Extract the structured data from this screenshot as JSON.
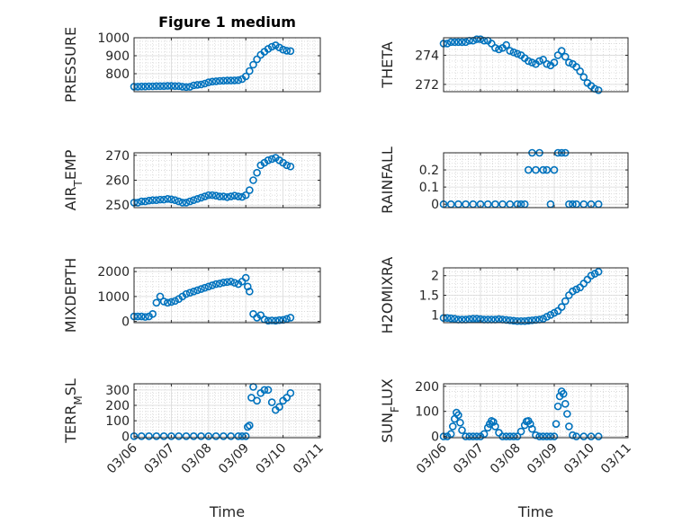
{
  "figure_title": "Figure 1 medium",
  "x_axis_label": "Time",
  "marker_color": "#0072BD",
  "date_ticks": [
    "03/06",
    "03/07",
    "03/08",
    "03/09",
    "03/10",
    "03/11"
  ],
  "chart_data": [
    {
      "type": "scatter",
      "title": "Figure 1 medium",
      "ylabel": "PRESSURE",
      "xlabel": "",
      "ylim": [
        700,
        1000
      ],
      "yticks": [
        800,
        900,
        1000
      ],
      "ytick_labels": [
        "800",
        "900",
        "1000"
      ],
      "xlim": [
        0,
        5
      ],
      "grid": true,
      "x": [
        0.0,
        0.1,
        0.2,
        0.3,
        0.4,
        0.5,
        0.6,
        0.7,
        0.8,
        0.9,
        1.0,
        1.1,
        1.2,
        1.3,
        1.4,
        1.5,
        1.6,
        1.7,
        1.8,
        1.9,
        2.0,
        2.1,
        2.2,
        2.3,
        2.4,
        2.5,
        2.6,
        2.7,
        2.8,
        2.9,
        3.0,
        3.1,
        3.2,
        3.3,
        3.4,
        3.5,
        3.6,
        3.7,
        3.8,
        3.9,
        4.0,
        4.1,
        4.2
      ],
      "y": [
        728,
        728,
        729,
        729,
        730,
        730,
        731,
        731,
        731,
        732,
        732,
        731,
        731,
        728,
        726,
        727,
        735,
        738,
        740,
        745,
        752,
        756,
        758,
        760,
        761,
        762,
        762,
        763,
        764,
        770,
        785,
        815,
        850,
        880,
        905,
        922,
        938,
        950,
        958,
        946,
        934,
        928,
        926
      ]
    },
    {
      "type": "scatter",
      "ylabel": "THETA",
      "xlabel": "",
      "ylim": [
        271.5,
        275.2
      ],
      "yticks": [
        272,
        274
      ],
      "ytick_labels": [
        "272",
        "274"
      ],
      "xlim": [
        0,
        5
      ],
      "grid": true,
      "x": [
        0.0,
        0.1,
        0.2,
        0.3,
        0.4,
        0.5,
        0.6,
        0.7,
        0.8,
        0.9,
        1.0,
        1.1,
        1.2,
        1.3,
        1.4,
        1.5,
        1.6,
        1.7,
        1.8,
        1.9,
        2.0,
        2.1,
        2.2,
        2.3,
        2.4,
        2.5,
        2.6,
        2.7,
        2.8,
        2.9,
        3.0,
        3.1,
        3.2,
        3.3,
        3.4,
        3.5,
        3.6,
        3.7,
        3.8,
        3.9,
        4.0,
        4.1,
        4.2
      ],
      "y": [
        274.8,
        274.8,
        274.9,
        274.9,
        274.9,
        274.9,
        274.9,
        275.0,
        275.0,
        275.1,
        275.1,
        275.0,
        275.0,
        274.8,
        274.5,
        274.4,
        274.5,
        274.7,
        274.3,
        274.2,
        274.1,
        274.0,
        273.8,
        273.6,
        273.5,
        273.4,
        273.6,
        273.7,
        273.4,
        273.3,
        273.5,
        274.0,
        274.3,
        273.9,
        273.5,
        273.4,
        273.2,
        272.9,
        272.5,
        272.1,
        271.9,
        271.7,
        271.6
      ]
    },
    {
      "type": "scatter",
      "ylabel": "AIR_TEMP",
      "xlabel": "",
      "ylim": [
        249,
        271
      ],
      "yticks": [
        250,
        260,
        270
      ],
      "ytick_labels": [
        "250",
        "260",
        "270"
      ],
      "xlim": [
        0,
        5
      ],
      "grid": true,
      "x": [
        0.0,
        0.1,
        0.2,
        0.3,
        0.4,
        0.5,
        0.6,
        0.7,
        0.8,
        0.9,
        1.0,
        1.1,
        1.2,
        1.3,
        1.4,
        1.5,
        1.6,
        1.7,
        1.8,
        1.9,
        2.0,
        2.1,
        2.2,
        2.3,
        2.4,
        2.5,
        2.6,
        2.7,
        2.8,
        2.9,
        3.0,
        3.1,
        3.2,
        3.3,
        3.4,
        3.5,
        3.6,
        3.7,
        3.8,
        3.9,
        4.0,
        4.1,
        4.2
      ],
      "y": [
        251,
        251,
        251.5,
        251.5,
        251.8,
        252,
        252,
        252.2,
        252.2,
        252.5,
        252.3,
        252,
        251.5,
        251,
        251,
        251.5,
        252,
        252.5,
        253,
        253.5,
        254,
        254,
        253.8,
        253.5,
        253.5,
        253.2,
        253.5,
        253.8,
        253.5,
        253.3,
        254,
        256,
        260,
        263,
        266,
        267,
        268,
        268.5,
        269,
        268,
        267,
        266,
        265.5
      ]
    },
    {
      "type": "scatter",
      "ylabel": "RAINFALL",
      "xlabel": "",
      "ylim": [
        -0.02,
        0.3
      ],
      "yticks": [
        0,
        0.1,
        0.2
      ],
      "ytick_labels": [
        "0",
        "0.1",
        "0.2"
      ],
      "xlim": [
        0,
        5
      ],
      "grid": true,
      "x": [
        0.0,
        0.2,
        0.4,
        0.6,
        0.8,
        1.0,
        1.2,
        1.4,
        1.6,
        1.8,
        2.0,
        2.1,
        2.2,
        2.3,
        2.4,
        2.5,
        2.6,
        2.7,
        2.8,
        2.9,
        3.0,
        3.1,
        3.2,
        3.3,
        3.4,
        3.5,
        3.6,
        3.8,
        4.0,
        4.2
      ],
      "y": [
        0,
        0,
        0,
        0,
        0,
        0,
        0,
        0,
        0,
        0,
        0,
        0,
        0,
        0.2,
        0.3,
        0.2,
        0.3,
        0.2,
        0.2,
        0,
        0.2,
        0.3,
        0.3,
        0.3,
        0,
        0,
        0,
        0,
        0,
        0
      ]
    },
    {
      "type": "scatter",
      "ylabel": "MIXDEPTH",
      "xlabel": "",
      "ylim": [
        -50,
        2150
      ],
      "yticks": [
        0,
        1000,
        2000
      ],
      "ytick_labels": [
        "0",
        "1000",
        "2000"
      ],
      "xlim": [
        0,
        5
      ],
      "grid": true,
      "x": [
        0.0,
        0.1,
        0.2,
        0.3,
        0.4,
        0.5,
        0.6,
        0.7,
        0.8,
        0.9,
        1.0,
        1.1,
        1.2,
        1.3,
        1.4,
        1.5,
        1.6,
        1.7,
        1.8,
        1.9,
        2.0,
        2.1,
        2.2,
        2.3,
        2.4,
        2.5,
        2.6,
        2.7,
        2.8,
        2.9,
        3.0,
        3.05,
        3.1,
        3.2,
        3.3,
        3.4,
        3.5,
        3.6,
        3.7,
        3.8,
        3.9,
        4.0,
        4.1,
        4.2
      ],
      "y": [
        200,
        200,
        200,
        180,
        200,
        300,
        750,
        1000,
        800,
        750,
        780,
        820,
        900,
        1000,
        1100,
        1150,
        1200,
        1250,
        1300,
        1350,
        1400,
        1450,
        1500,
        1520,
        1560,
        1580,
        1600,
        1550,
        1500,
        1600,
        1750,
        1400,
        1200,
        300,
        150,
        250,
        80,
        30,
        40,
        30,
        50,
        60,
        100,
        150
      ]
    },
    {
      "type": "scatter",
      "ylabel": "H2OMIXRA",
      "xlabel": "",
      "ylim": [
        0.8,
        2.2
      ],
      "yticks": [
        1,
        1.5,
        2
      ],
      "ytick_labels": [
        "1",
        "1.5",
        "2"
      ],
      "xlim": [
        0,
        5
      ],
      "grid": true,
      "x": [
        0.0,
        0.1,
        0.2,
        0.3,
        0.4,
        0.5,
        0.6,
        0.7,
        0.8,
        0.9,
        1.0,
        1.1,
        1.2,
        1.3,
        1.4,
        1.5,
        1.6,
        1.7,
        1.8,
        1.9,
        2.0,
        2.1,
        2.2,
        2.3,
        2.4,
        2.5,
        2.6,
        2.7,
        2.8,
        2.9,
        3.0,
        3.1,
        3.2,
        3.3,
        3.4,
        3.5,
        3.6,
        3.7,
        3.8,
        3.9,
        4.0,
        4.1,
        4.2
      ],
      "y": [
        0.92,
        0.92,
        0.91,
        0.9,
        0.88,
        0.88,
        0.88,
        0.89,
        0.9,
        0.9,
        0.89,
        0.88,
        0.88,
        0.88,
        0.88,
        0.89,
        0.88,
        0.87,
        0.86,
        0.85,
        0.84,
        0.84,
        0.84,
        0.85,
        0.86,
        0.87,
        0.88,
        0.9,
        0.95,
        1.0,
        1.05,
        1.1,
        1.2,
        1.35,
        1.5,
        1.6,
        1.65,
        1.7,
        1.8,
        1.9,
        2.0,
        2.05,
        2.1
      ]
    },
    {
      "type": "scatter",
      "ylabel": "TERR_MSL",
      "xlabel": "Time",
      "ylim": [
        -10,
        340
      ],
      "yticks": [
        0,
        100,
        200,
        300
      ],
      "ytick_labels": [
        "0",
        "100",
        "200",
        "300"
      ],
      "xlim": [
        0,
        5
      ],
      "grid": true,
      "x": [
        0.0,
        0.2,
        0.4,
        0.6,
        0.8,
        1.0,
        1.2,
        1.4,
        1.6,
        1.8,
        2.0,
        2.2,
        2.4,
        2.6,
        2.8,
        2.9,
        3.0,
        3.05,
        3.1,
        3.15,
        3.2,
        3.3,
        3.4,
        3.5,
        3.6,
        3.7,
        3.8,
        3.9,
        4.0,
        4.1,
        4.2
      ],
      "y": [
        0,
        0,
        0,
        0,
        0,
        0,
        0,
        0,
        0,
        0,
        0,
        0,
        0,
        0,
        0,
        0,
        0,
        60,
        70,
        250,
        320,
        230,
        280,
        300,
        300,
        220,
        170,
        190,
        230,
        250,
        280
      ]
    },
    {
      "type": "scatter",
      "ylabel": "SUN_FLUX",
      "xlabel": "Time",
      "ylim": [
        -5,
        210
      ],
      "yticks": [
        0,
        100,
        200
      ],
      "ytick_labels": [
        "0",
        "100",
        "200"
      ],
      "xlim": [
        0,
        5
      ],
      "grid": true,
      "x": [
        0.0,
        0.1,
        0.2,
        0.25,
        0.3,
        0.35,
        0.4,
        0.45,
        0.5,
        0.6,
        0.7,
        0.8,
        0.9,
        1.0,
        1.1,
        1.2,
        1.25,
        1.3,
        1.35,
        1.4,
        1.5,
        1.6,
        1.7,
        1.8,
        1.9,
        2.0,
        2.1,
        2.2,
        2.25,
        2.3,
        2.35,
        2.4,
        2.5,
        2.6,
        2.7,
        2.8,
        2.9,
        3.0,
        3.05,
        3.1,
        3.15,
        3.2,
        3.25,
        3.3,
        3.35,
        3.4,
        3.5,
        3.6,
        3.8,
        4.0,
        4.2
      ],
      "y": [
        0,
        0,
        10,
        40,
        70,
        95,
        85,
        55,
        25,
        0,
        0,
        0,
        0,
        0,
        10,
        35,
        50,
        62,
        58,
        40,
        15,
        0,
        0,
        0,
        0,
        0,
        20,
        45,
        60,
        62,
        50,
        30,
        5,
        0,
        0,
        0,
        0,
        0,
        50,
        120,
        160,
        180,
        170,
        130,
        90,
        40,
        5,
        0,
        0,
        0,
        0
      ]
    }
  ]
}
